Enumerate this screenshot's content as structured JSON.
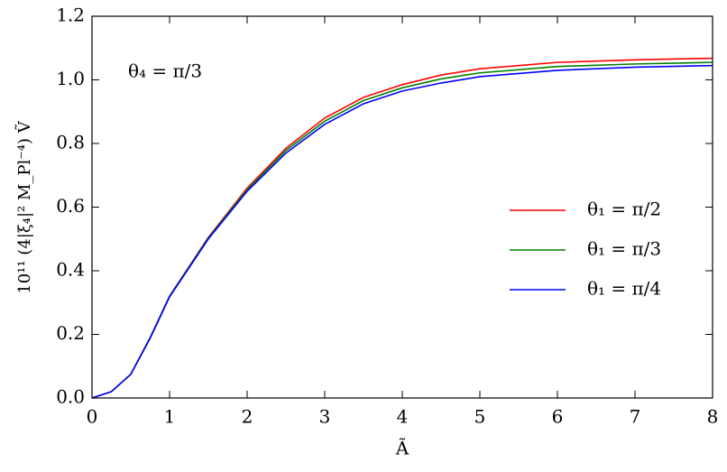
{
  "chart_data": {
    "type": "line",
    "x_label": "Ã",
    "y_label": "10¹¹ (4|ξ₄|² M_Pl⁻⁴) Ṽ",
    "annotation": "θ₄ = π/3",
    "x": [
      0,
      0.25,
      0.5,
      0.75,
      1,
      1.5,
      2,
      2.5,
      3,
      3.5,
      4,
      4.5,
      5,
      6,
      7,
      8
    ],
    "series": [
      {
        "name": "θ₁ = π/2",
        "color": "#ff0000",
        "values": [
          0,
          0.02,
          0.075,
          0.19,
          0.32,
          0.505,
          0.66,
          0.785,
          0.88,
          0.945,
          0.985,
          1.015,
          1.035,
          1.055,
          1.063,
          1.068
        ]
      },
      {
        "name": "θ₁ = π/3",
        "color": "#008000",
        "values": [
          0,
          0.02,
          0.075,
          0.19,
          0.32,
          0.503,
          0.655,
          0.778,
          0.87,
          0.935,
          0.975,
          1.003,
          1.022,
          1.042,
          1.05,
          1.055
        ]
      },
      {
        "name": "θ₁ = π/4",
        "color": "#0000ff",
        "values": [
          0,
          0.02,
          0.074,
          0.188,
          0.318,
          0.5,
          0.65,
          0.77,
          0.86,
          0.925,
          0.965,
          0.99,
          1.01,
          1.03,
          1.04,
          1.045
        ]
      }
    ],
    "xlim": [
      0,
      8
    ],
    "xticks": [
      0,
      1,
      2,
      3,
      4,
      5,
      6,
      7,
      8
    ],
    "ylim": [
      0,
      1.2
    ],
    "yticks": [
      {
        "value": 0,
        "label": "0.0"
      },
      {
        "value": 0.2,
        "label": "0.2"
      },
      {
        "value": 0.4,
        "label": "0.4"
      },
      {
        "value": 0.6,
        "label": "0.6"
      },
      {
        "value": 0.8,
        "label": "0.8"
      },
      {
        "value": 1,
        "label": "1.0"
      },
      {
        "value": 1.2,
        "label": "1.2"
      }
    ],
    "legend": "lower right"
  }
}
